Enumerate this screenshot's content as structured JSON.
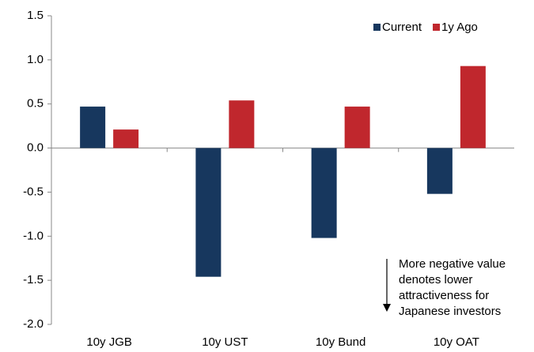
{
  "chart_data": {
    "type": "bar",
    "categories": [
      "10y JGB",
      "10y UST",
      "10y Bund",
      "10y OAT"
    ],
    "series": [
      {
        "name": "Current",
        "color": "#17375e",
        "values": [
          0.47,
          -1.46,
          -1.02,
          -0.52
        ]
      },
      {
        "name": "1y Ago",
        "color": "#c0272d",
        "values": [
          0.21,
          0.54,
          0.47,
          0.93
        ]
      }
    ],
    "ylim": [
      -2.0,
      1.5
    ],
    "yticks": [
      1.5,
      {
        "value": 1.0,
        "label": "1.0"
      },
      0.5,
      {
        "value": 0.0,
        "label": "0.0"
      },
      -0.5,
      {
        "value": -1.0,
        "label": "-1.0"
      },
      -1.5,
      {
        "value": -2.0,
        "label": "-2.0"
      }
    ],
    "legend": "top-right",
    "annotation": [
      "More negative value",
      "denotes lower",
      "attractiveness for",
      "Japanese investors"
    ]
  }
}
